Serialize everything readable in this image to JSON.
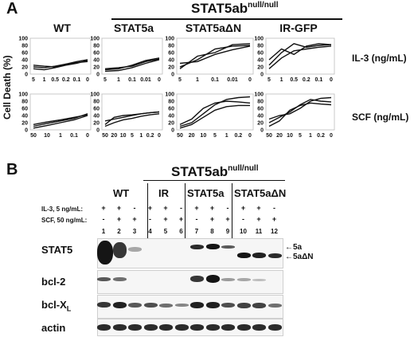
{
  "panel_a": {
    "letter": "A",
    "group_title_main": "STAT5ab",
    "group_title_sup": "null/null",
    "col_headers": [
      "WT",
      "STAT5a",
      "STAT5aΔN",
      "IR-GFP"
    ],
    "ylabel": "Cell Death (%)",
    "y_ticks": [
      "100",
      "80",
      "60",
      "40",
      "20",
      "0"
    ],
    "row_labels": [
      "IL-3 (ng/mL)",
      "SCF (ng/mL)"
    ],
    "x_ticks_il3": [
      "5",
      "1",
      "0.5",
      "0.2",
      "0.1",
      "0"
    ],
    "x_ticks_il3_cols": [
      [
        "5",
        "1",
        "0.5",
        "0.2",
        "0.1",
        "0"
      ],
      [
        "5",
        "1",
        "0.1",
        "0.01",
        "0"
      ],
      [
        "5",
        "1",
        "0.1",
        "0.01",
        "0"
      ],
      [
        "5",
        "1",
        "0.5",
        "0.2",
        "0.1",
        "0"
      ]
    ],
    "x_ticks_scf": [
      [
        "50",
        "10",
        "1",
        "0.1",
        "0"
      ],
      [
        "50",
        "20",
        "10",
        "5",
        "1",
        "0.2",
        "0"
      ],
      [
        "50",
        "20",
        "10",
        "5",
        "1",
        "0.2",
        "0"
      ],
      [
        "50",
        "20",
        "10",
        "5",
        "1",
        "0.2",
        "0"
      ]
    ]
  },
  "chart_data": [
    {
      "type": "line",
      "title": "WT",
      "row": "IL-3 (ng/mL)",
      "ylim": [
        0,
        100
      ],
      "series": [
        {
          "values": [
            20,
            18,
            22,
            28,
            35,
            40
          ]
        },
        {
          "values": [
            15,
            12,
            18,
            25,
            30,
            38
          ]
        },
        {
          "values": [
            25,
            22,
            20,
            28,
            32,
            35
          ]
        }
      ]
    },
    {
      "type": "line",
      "title": "STAT5a",
      "row": "IL-3 (ng/mL)",
      "ylim": [
        0,
        100
      ],
      "series": [
        {
          "values": [
            12,
            15,
            25,
            38,
            45
          ]
        },
        {
          "values": [
            8,
            10,
            18,
            30,
            40
          ]
        },
        {
          "values": [
            15,
            18,
            22,
            35,
            42
          ]
        }
      ]
    },
    {
      "type": "line",
      "title": "STAT5aΔN",
      "row": "IL-3 (ng/mL)",
      "ylim": [
        0,
        100
      ],
      "series": [
        {
          "values": [
            20,
            40,
            70,
            78,
            80
          ]
        },
        {
          "values": [
            15,
            50,
            60,
            82,
            85
          ]
        },
        {
          "values": [
            30,
            35,
            55,
            68,
            78
          ]
        }
      ]
    },
    {
      "type": "line",
      "title": "IR-GFP",
      "row": "IL-3 (ng/mL)",
      "ylim": [
        0,
        100
      ],
      "series": [
        {
          "values": [
            25,
            60,
            85,
            75,
            80,
            82
          ]
        },
        {
          "values": [
            40,
            70,
            55,
            78,
            85,
            82
          ]
        },
        {
          "values": [
            15,
            45,
            65,
            70,
            75,
            78
          ]
        }
      ]
    },
    {
      "type": "line",
      "title": "WT",
      "row": "SCF (ng/mL)",
      "ylim": [
        0,
        100
      ],
      "series": [
        {
          "values": [
            10,
            18,
            25,
            32,
            45
          ]
        },
        {
          "values": [
            5,
            12,
            20,
            28,
            40
          ]
        },
        {
          "values": [
            15,
            22,
            28,
            35,
            42
          ]
        }
      ]
    },
    {
      "type": "line",
      "title": "STAT5a",
      "row": "SCF (ng/mL)",
      "ylim": [
        0,
        100
      ],
      "series": [
        {
          "values": [
            15,
            35,
            40,
            42,
            45,
            48,
            50
          ]
        },
        {
          "values": [
            10,
            20,
            28,
            32,
            38,
            42,
            45
          ]
        },
        {
          "values": [
            25,
            30,
            35,
            40,
            45,
            48,
            50
          ]
        }
      ]
    },
    {
      "type": "line",
      "title": "STAT5aΔN",
      "row": "SCF (ng/mL)",
      "ylim": [
        0,
        100
      ],
      "series": [
        {
          "values": [
            10,
            20,
            45,
            70,
            85,
            90,
            92
          ]
        },
        {
          "values": [
            15,
            30,
            60,
            75,
            80,
            78,
            75
          ]
        },
        {
          "values": [
            5,
            15,
            35,
            55,
            65,
            68,
            68
          ]
        }
      ]
    },
    {
      "type": "line",
      "title": "IR-GFP",
      "row": "SCF (ng/mL)",
      "ylim": [
        0,
        100
      ],
      "series": [
        {
          "values": [
            20,
            35,
            50,
            70,
            85,
            80,
            78
          ]
        },
        {
          "values": [
            30,
            40,
            45,
            60,
            80,
            88,
            90
          ]
        },
        {
          "values": [
            10,
            25,
            55,
            68,
            75,
            72,
            70
          ]
        }
      ]
    }
  ],
  "panel_b": {
    "letter": "B",
    "group_title_main": "STAT5ab",
    "group_title_sup": "null/null",
    "groups": [
      "WT",
      "IR",
      "STAT5a",
      "STAT5aΔN"
    ],
    "treat_labels": [
      "IL-3, 5 ng/mL:",
      "SCF, 50 ng/mL:"
    ],
    "il3_signs": [
      "+",
      "+",
      "-",
      "+",
      "+",
      "-",
      "+",
      "+",
      "-",
      "+",
      "+",
      "-"
    ],
    "scf_signs": [
      "-",
      "+",
      "+",
      "-",
      "+",
      "+",
      "-",
      "+",
      "+",
      "-",
      "+",
      "+"
    ],
    "lanes": [
      "1",
      "2",
      "3",
      "4",
      "5",
      "6",
      "7",
      "8",
      "9",
      "10",
      "11",
      "12"
    ],
    "blot_labels": [
      "STAT5",
      "bcl-2",
      "bcl-X",
      "actin"
    ],
    "bclx_sub": "L",
    "arrow_labels": [
      "5a",
      "5aΔN"
    ]
  }
}
